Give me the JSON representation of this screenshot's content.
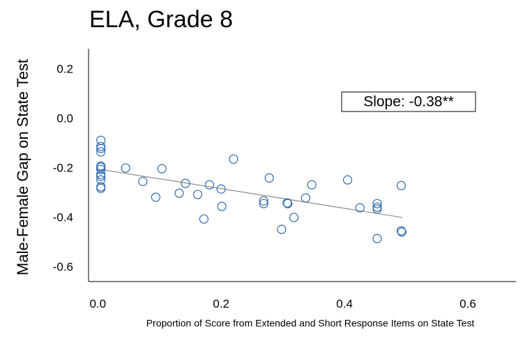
{
  "chart_data": {
    "type": "scatter",
    "title": "ELA, Grade 8",
    "x_label": "Proportion of Score from Extended and Short Response Items on State Test",
    "y_label": "Male-Female Gap on State Test",
    "annotation": "Slope: -0.38**",
    "color": "#2e69ad",
    "trend_color": "#8c8c8c",
    "x": [
      0.005,
      0.005,
      0.005,
      0.005,
      0.005,
      0.005,
      0.005,
      0.005,
      0.005,
      0.005,
      0.005,
      0.005,
      0.045,
      0.073,
      0.094,
      0.104,
      0.132,
      0.142,
      0.162,
      0.172,
      0.181,
      0.2,
      0.201,
      0.22,
      0.269,
      0.269,
      0.278,
      0.298,
      0.307,
      0.308,
      0.318,
      0.337,
      0.347,
      0.405,
      0.425,
      0.453,
      0.453,
      0.453,
      0.453,
      0.492,
      0.492,
      0.493
    ],
    "y": [
      -0.085,
      -0.11,
      -0.118,
      -0.132,
      -0.189,
      -0.194,
      -0.203,
      -0.223,
      -0.231,
      -0.245,
      -0.273,
      -0.279,
      -0.197,
      -0.251,
      -0.315,
      -0.2,
      -0.299,
      -0.259,
      -0.304,
      -0.403,
      -0.265,
      -0.282,
      -0.352,
      -0.161,
      -0.33,
      -0.341,
      -0.237,
      -0.445,
      -0.338,
      -0.341,
      -0.397,
      -0.318,
      -0.265,
      -0.245,
      -0.358,
      -0.341,
      -0.355,
      -0.363,
      -0.482,
      -0.268,
      -0.451,
      -0.456
    ],
    "trendline": {
      "x": [
        0.005,
        0.494
      ],
      "y": [
        -0.203,
        -0.397
      ]
    },
    "xlim": [
      -0.015,
      0.678
    ],
    "ylim": [
      -0.656,
      0.285
    ],
    "xticks": [
      {
        "value": 0,
        "label": "0.0"
      },
      0.2,
      0.4,
      0.6
    ],
    "yticks": [
      0.2,
      {
        "value": 0,
        "label": "0.0"
      },
      -0.2,
      -0.4,
      -0.6
    ],
    "grid": false
  }
}
